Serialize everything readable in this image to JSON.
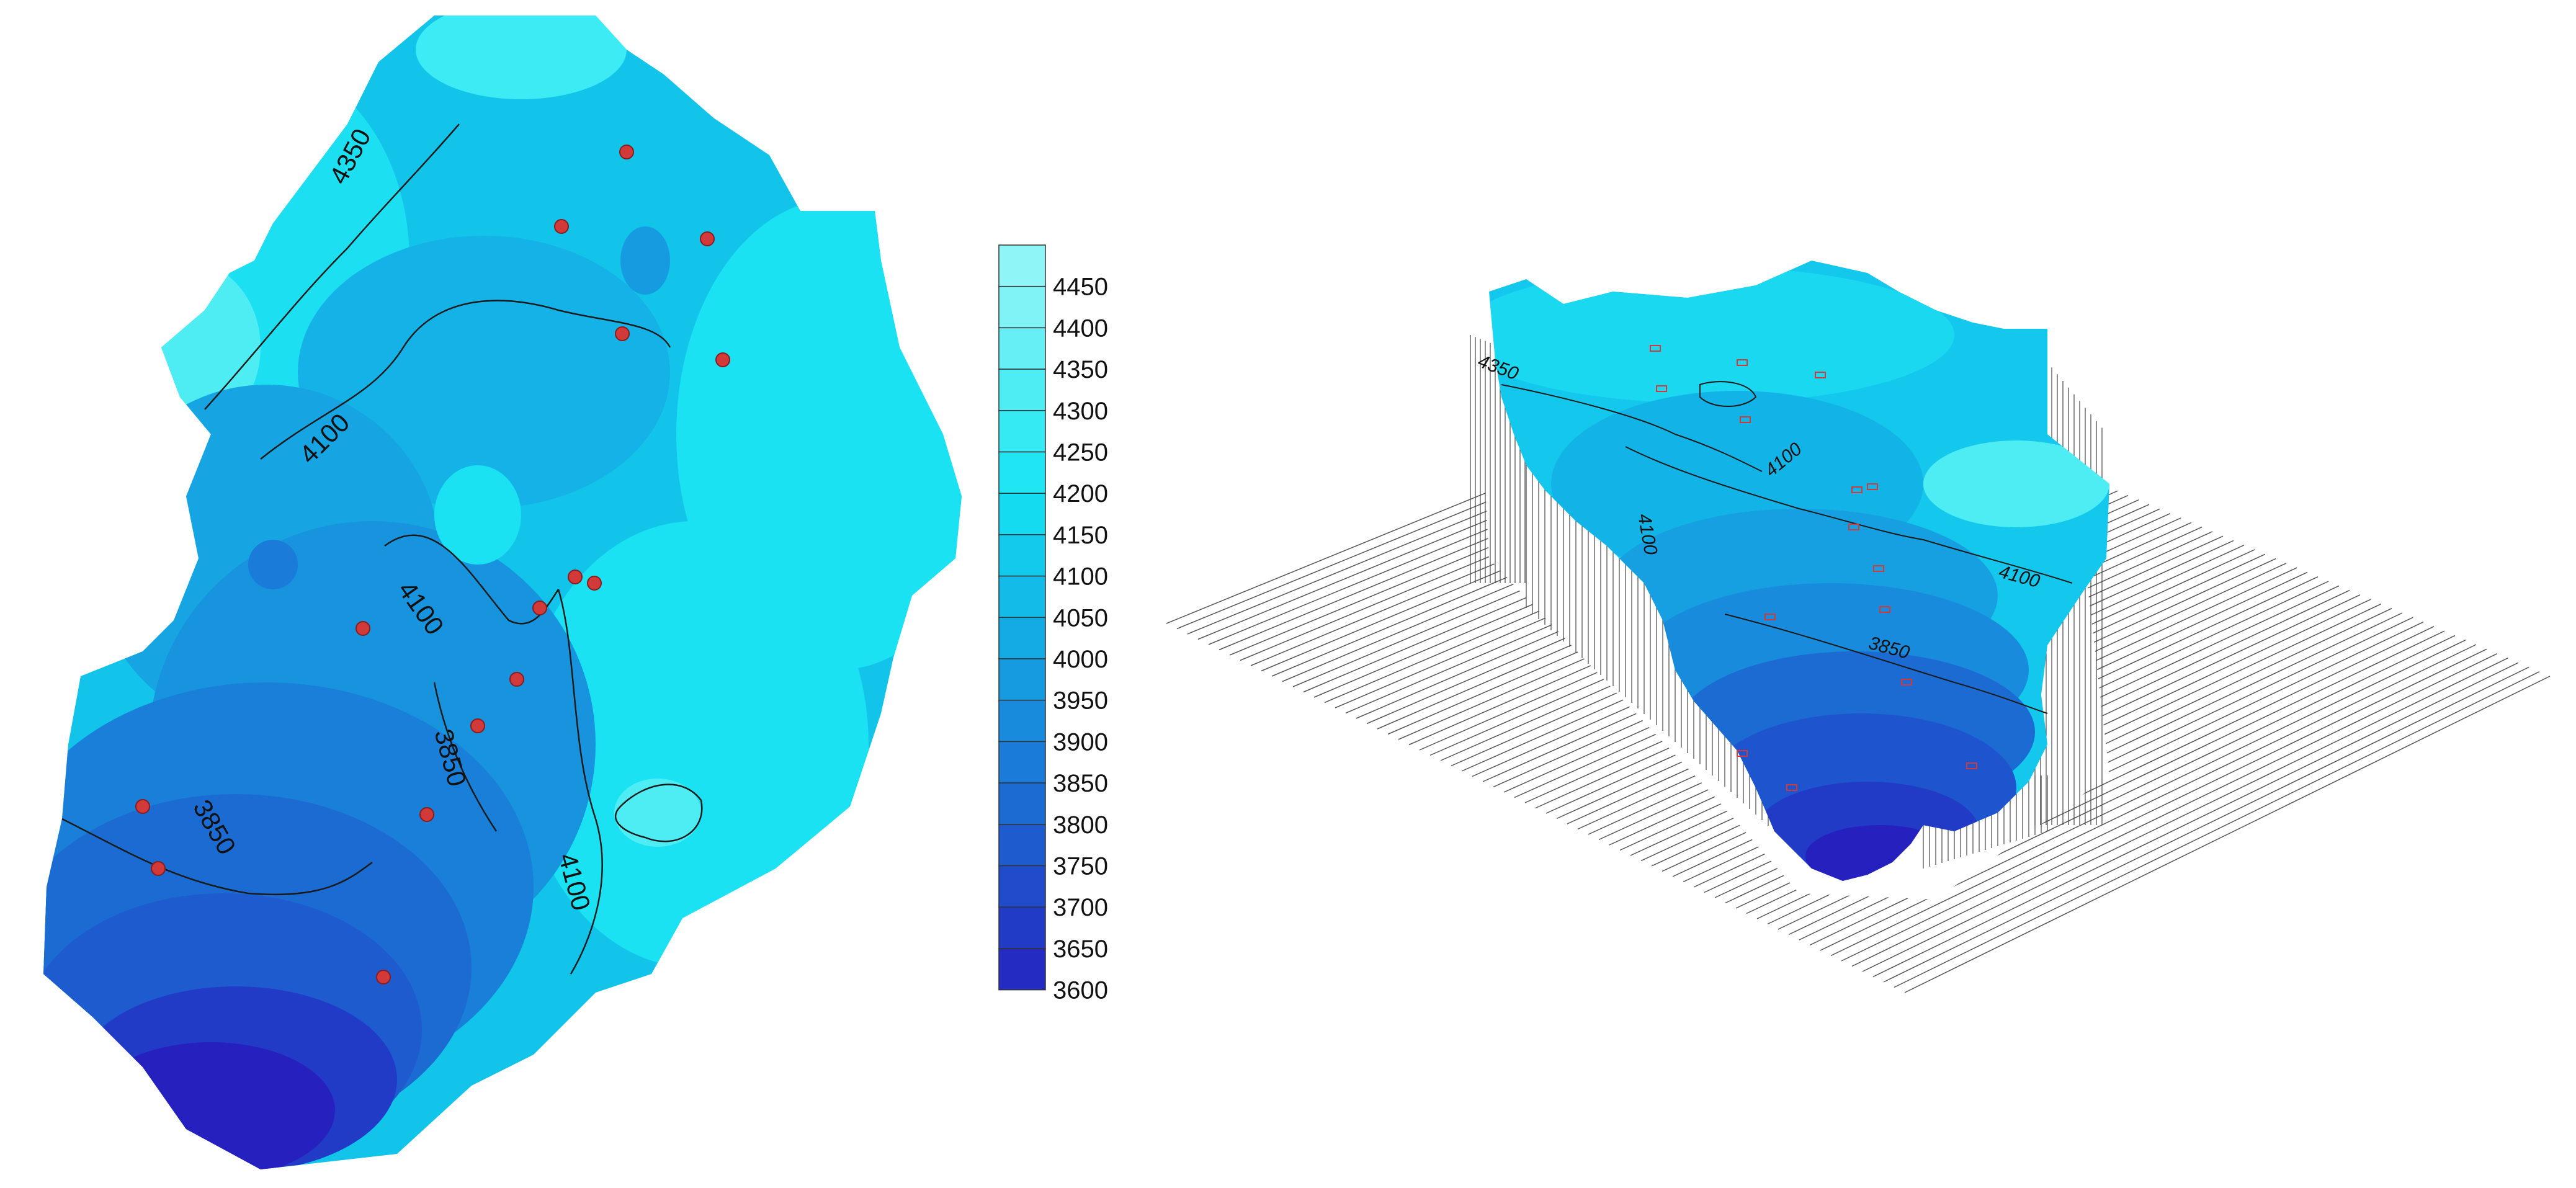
{
  "contour_map": {
    "contour_labels": [
      "4350",
      "4100",
      "4100",
      "3850",
      "3850",
      "4100"
    ]
  },
  "legend": {
    "levels": [
      "4450",
      "4400",
      "4350",
      "4300",
      "4250",
      "4200",
      "4150",
      "4100",
      "4050",
      "4000",
      "3950",
      "3900",
      "3850",
      "3800",
      "3750",
      "3700",
      "3650",
      "3600"
    ],
    "colors": [
      "#7ff3f6",
      "#66f0f5",
      "#4eedf4",
      "#36eaf3",
      "#1fe6f2",
      "#14dbf0",
      "#12cbec",
      "#12bbe8",
      "#14abe4",
      "#169be0",
      "#188bdc",
      "#1a7bd8",
      "#1c6bd3",
      "#1e5bcf",
      "#204bcb",
      "#223bc7",
      "#242bc2",
      "#2620be"
    ]
  },
  "surface_3d": {
    "contour_labels": [
      "4350",
      "4100",
      "4100",
      "4100",
      "3850"
    ]
  },
  "colors": {
    "well_marker": "#d23a3a",
    "contour_line": "#1a1a1a",
    "wire_line": "#555555"
  }
}
